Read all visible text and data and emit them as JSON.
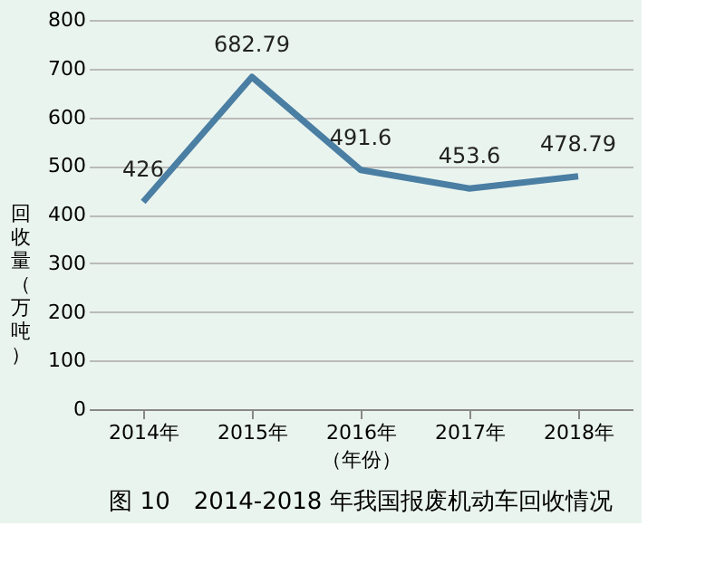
{
  "chart_data": {
    "type": "line",
    "title": "图 10　2014-2018 年我国报废机动车回收情况",
    "xlabel": "（年份）",
    "ylabel": "回收量（万吨）",
    "categories": [
      "2014年",
      "2015年",
      "2016年",
      "2017年",
      "2018年"
    ],
    "series": [
      {
        "color": "#4a7ea3",
        "values": [
          426,
          682.79,
          491.6,
          453.6,
          478.79
        ]
      }
    ],
    "ylim": [
      0,
      800
    ],
    "yticks": [
      0,
      100,
      200,
      300,
      400,
      500,
      600,
      700,
      800
    ],
    "grid": "y",
    "data_labels": true,
    "marker": "none",
    "line_style": "solid",
    "legend": false
  }
}
